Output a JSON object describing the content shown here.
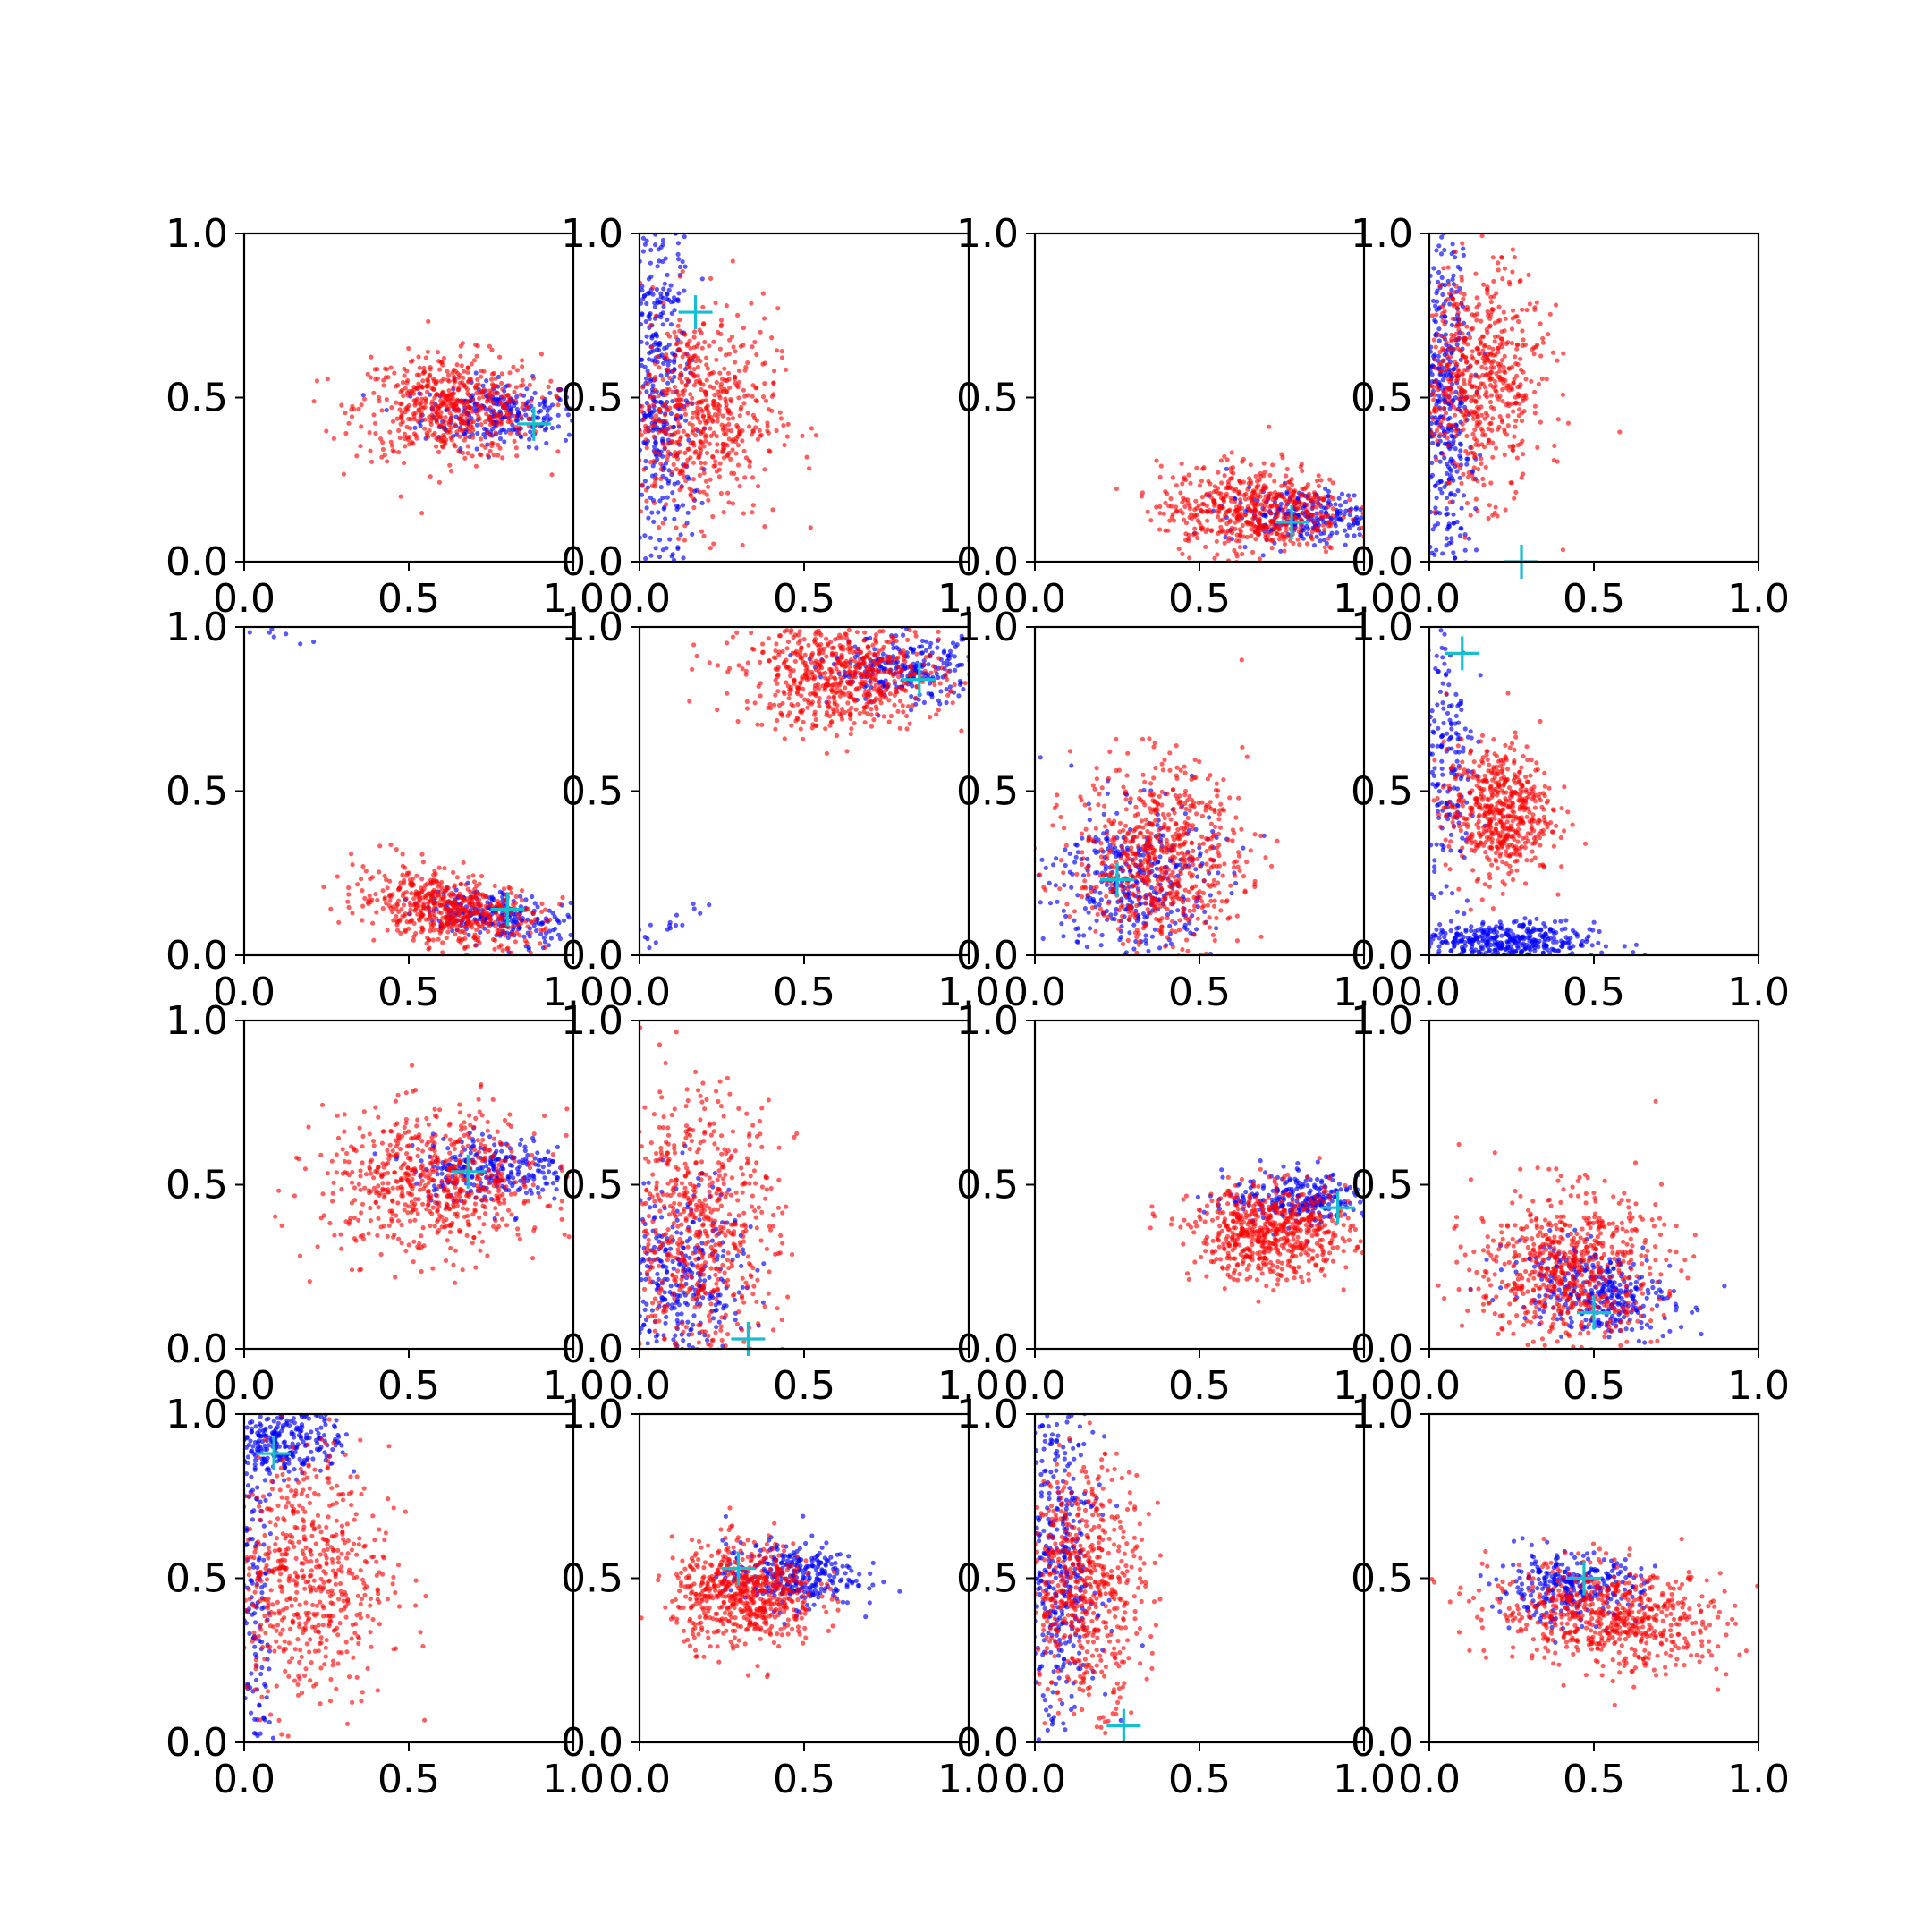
{
  "chart_data": [
    {
      "type": "scatter",
      "xlim": [
        0,
        1
      ],
      "ylim": [
        0,
        1
      ],
      "xticks": [
        "0.0",
        "0.5",
        "1.0"
      ],
      "yticks": [
        "0.0",
        "0.5",
        "1.0"
      ],
      "grid": false,
      "clusters": [
        {
          "series": "blue",
          "n": 260,
          "cx": 0.78,
          "cy": 0.45,
          "sx": 0.12,
          "sy": 0.05,
          "rho": 0.0
        },
        {
          "series": "red",
          "n": 560,
          "cx": 0.62,
          "cy": 0.47,
          "sx": 0.14,
          "sy": 0.08,
          "rho": 0.0
        }
      ],
      "marker": {
        "x": 0.88,
        "y": 0.42
      }
    },
    {
      "type": "scatter",
      "xlim": [
        0,
        1
      ],
      "ylim": [
        0,
        1
      ],
      "xticks": [
        "0.0",
        "0.5",
        "1.0"
      ],
      "yticks": [
        "0.0",
        "0.5",
        "1.0"
      ],
      "grid": false,
      "clusters": [
        {
          "series": "blue",
          "n": 420,
          "cx": 0.06,
          "cy": 0.5,
          "sx": 0.05,
          "sy": 0.3,
          "rho": 0.0
        },
        {
          "series": "red",
          "n": 620,
          "cx": 0.18,
          "cy": 0.45,
          "sx": 0.12,
          "sy": 0.16,
          "rho": 0.0
        }
      ],
      "marker": {
        "x": 0.17,
        "y": 0.76
      }
    },
    {
      "type": "scatter",
      "xlim": [
        0,
        1
      ],
      "ylim": [
        0,
        1
      ],
      "xticks": [
        "0.0",
        "0.5",
        "1.0"
      ],
      "yticks": [
        "0.0",
        "0.5",
        "1.0"
      ],
      "grid": false,
      "clusters": [
        {
          "series": "blue",
          "n": 260,
          "cx": 0.82,
          "cy": 0.14,
          "sx": 0.12,
          "sy": 0.04,
          "rho": 0.0
        },
        {
          "series": "red",
          "n": 560,
          "cx": 0.66,
          "cy": 0.16,
          "sx": 0.14,
          "sy": 0.07,
          "rho": 0.0
        }
      ],
      "marker": {
        "x": 0.78,
        "y": 0.12
      }
    },
    {
      "type": "scatter",
      "xlim": [
        0,
        1
      ],
      "ylim": [
        0,
        1
      ],
      "xticks": [
        "0.0",
        "0.5",
        "1.0"
      ],
      "yticks": [
        "0.0",
        "0.5",
        "1.0"
      ],
      "grid": false,
      "clusters": [
        {
          "series": "blue",
          "n": 420,
          "cx": 0.05,
          "cy": 0.45,
          "sx": 0.04,
          "sy": 0.3,
          "rho": 0.0
        },
        {
          "series": "red",
          "n": 620,
          "cx": 0.15,
          "cy": 0.55,
          "sx": 0.1,
          "sy": 0.17,
          "rho": 0.0
        }
      ],
      "marker": {
        "x": 0.28,
        "y": 0.0
      }
    },
    {
      "type": "scatter",
      "xlim": [
        0,
        1
      ],
      "ylim": [
        0,
        1
      ],
      "xticks": [
        "0.0",
        "0.5",
        "1.0"
      ],
      "yticks": [
        "0.0",
        "0.5",
        "1.0"
      ],
      "grid": false,
      "clusters": [
        {
          "series": "blue",
          "n": 240,
          "cx": 0.78,
          "cy": 0.12,
          "sx": 0.12,
          "sy": 0.04,
          "rho": -0.4
        },
        {
          "series": "red",
          "n": 560,
          "cx": 0.62,
          "cy": 0.14,
          "sx": 0.14,
          "sy": 0.06,
          "rho": -0.4
        },
        {
          "series": "blue",
          "n": 8,
          "cx": 0.08,
          "cy": 0.97,
          "sx": 0.06,
          "sy": 0.015,
          "rho": 0.0
        }
      ],
      "marker": {
        "x": 0.8,
        "y": 0.14
      }
    },
    {
      "type": "scatter",
      "xlim": [
        0,
        1
      ],
      "ylim": [
        0,
        1
      ],
      "xticks": [
        "0.0",
        "0.5",
        "1.0"
      ],
      "yticks": [
        "0.0",
        "0.5",
        "1.0"
      ],
      "grid": false,
      "clusters": [
        {
          "series": "blue",
          "n": 260,
          "cx": 0.82,
          "cy": 0.87,
          "sx": 0.12,
          "sy": 0.05,
          "rho": 0.0
        },
        {
          "series": "red",
          "n": 640,
          "cx": 0.62,
          "cy": 0.85,
          "sx": 0.15,
          "sy": 0.08,
          "rho": 0.0
        },
        {
          "series": "blue",
          "n": 18,
          "cx": 0.08,
          "cy": 0.08,
          "sx": 0.05,
          "sy": 0.06,
          "rho": 0.5
        }
      ],
      "marker": {
        "x": 0.85,
        "y": 0.84
      }
    },
    {
      "type": "scatter",
      "xlim": [
        0,
        1
      ],
      "ylim": [
        0,
        1
      ],
      "xticks": [
        "0.0",
        "0.5",
        "1.0"
      ],
      "yticks": [
        "0.0",
        "0.5",
        "1.0"
      ],
      "grid": false,
      "clusters": [
        {
          "series": "blue",
          "n": 380,
          "cx": 0.3,
          "cy": 0.22,
          "sx": 0.12,
          "sy": 0.12,
          "rho": 0.0
        },
        {
          "series": "red",
          "n": 680,
          "cx": 0.38,
          "cy": 0.3,
          "sx": 0.13,
          "sy": 0.14,
          "rho": 0.0
        }
      ],
      "marker": {
        "x": 0.25,
        "y": 0.23
      }
    },
    {
      "type": "scatter",
      "xlim": [
        0,
        1
      ],
      "ylim": [
        0,
        1
      ],
      "xticks": [
        "0.0",
        "0.5",
        "1.0"
      ],
      "yticks": [
        "0.0",
        "0.5",
        "1.0"
      ],
      "grid": false,
      "clusters": [
        {
          "series": "blue",
          "n": 420,
          "cx": 0.2,
          "cy": 0.04,
          "sx": 0.15,
          "sy": 0.03,
          "rho": 0.0
        },
        {
          "series": "blue",
          "n": 180,
          "cx": 0.06,
          "cy": 0.6,
          "sx": 0.04,
          "sy": 0.25,
          "rho": 0.0
        },
        {
          "series": "red",
          "n": 560,
          "cx": 0.21,
          "cy": 0.44,
          "sx": 0.08,
          "sy": 0.1,
          "rho": 0.0
        }
      ],
      "marker": {
        "x": 0.1,
        "y": 0.92
      }
    },
    {
      "type": "scatter",
      "xlim": [
        0,
        1
      ],
      "ylim": [
        0,
        1
      ],
      "xticks": [
        "0.0",
        "0.5",
        "1.0"
      ],
      "yticks": [
        "0.0",
        "0.5",
        "1.0"
      ],
      "grid": false,
      "clusters": [
        {
          "series": "blue",
          "n": 260,
          "cx": 0.75,
          "cy": 0.55,
          "sx": 0.12,
          "sy": 0.05,
          "rho": 0.0
        },
        {
          "series": "red",
          "n": 640,
          "cx": 0.58,
          "cy": 0.5,
          "sx": 0.17,
          "sy": 0.11,
          "rho": 0.0
        }
      ],
      "marker": {
        "x": 0.68,
        "y": 0.54
      }
    },
    {
      "type": "scatter",
      "xlim": [
        0,
        1
      ],
      "ylim": [
        0,
        1
      ],
      "xticks": [
        "0.0",
        "0.5",
        "1.0"
      ],
      "yticks": [
        "0.0",
        "0.5",
        "1.0"
      ],
      "grid": false,
      "clusters": [
        {
          "series": "blue",
          "n": 360,
          "cx": 0.12,
          "cy": 0.18,
          "sx": 0.1,
          "sy": 0.16,
          "rho": 0.0
        },
        {
          "series": "red",
          "n": 640,
          "cx": 0.18,
          "cy": 0.35,
          "sx": 0.12,
          "sy": 0.22,
          "rho": 0.0
        }
      ],
      "marker": {
        "x": 0.33,
        "y": 0.03
      }
    },
    {
      "type": "scatter",
      "xlim": [
        0,
        1
      ],
      "ylim": [
        0,
        1
      ],
      "xticks": [
        "0.0",
        "0.5",
        "1.0"
      ],
      "yticks": [
        "0.0",
        "0.5",
        "1.0"
      ],
      "grid": false,
      "clusters": [
        {
          "series": "blue",
          "n": 260,
          "cx": 0.82,
          "cy": 0.46,
          "sx": 0.12,
          "sy": 0.04,
          "rho": 0.0
        },
        {
          "series": "red",
          "n": 620,
          "cx": 0.72,
          "cy": 0.35,
          "sx": 0.12,
          "sy": 0.07,
          "rho": 0.0
        }
      ],
      "marker": {
        "x": 0.92,
        "y": 0.43
      }
    },
    {
      "type": "scatter",
      "xlim": [
        0,
        1
      ],
      "ylim": [
        0,
        1
      ],
      "xticks": [
        "0.0",
        "0.5",
        "1.0"
      ],
      "yticks": [
        "0.0",
        "0.5",
        "1.0"
      ],
      "grid": false,
      "clusters": [
        {
          "series": "blue",
          "n": 340,
          "cx": 0.5,
          "cy": 0.18,
          "sx": 0.12,
          "sy": 0.07,
          "rho": -0.3
        },
        {
          "series": "red",
          "n": 660,
          "cx": 0.42,
          "cy": 0.24,
          "sx": 0.14,
          "sy": 0.12,
          "rho": 0.0
        }
      ],
      "marker": {
        "x": 0.5,
        "y": 0.11
      }
    },
    {
      "type": "scatter",
      "xlim": [
        0,
        1
      ],
      "ylim": [
        0,
        1
      ],
      "xticks": [
        "0.0",
        "0.5",
        "1.0"
      ],
      "yticks": [
        "0.0",
        "0.5",
        "1.0"
      ],
      "grid": false,
      "clusters": [
        {
          "series": "blue",
          "n": 300,
          "cx": 0.12,
          "cy": 0.93,
          "sx": 0.09,
          "sy": 0.06,
          "rho": 0.0
        },
        {
          "series": "blue",
          "n": 160,
          "cx": 0.03,
          "cy": 0.4,
          "sx": 0.03,
          "sy": 0.3,
          "rho": 0.0
        },
        {
          "series": "red",
          "n": 620,
          "cx": 0.18,
          "cy": 0.5,
          "sx": 0.13,
          "sy": 0.2,
          "rho": 0.0
        }
      ],
      "marker": {
        "x": 0.09,
        "y": 0.88
      }
    },
    {
      "type": "scatter",
      "xlim": [
        0,
        1
      ],
      "ylim": [
        0,
        1
      ],
      "xticks": [
        "0.0",
        "0.5",
        "1.0"
      ],
      "yticks": [
        "0.0",
        "0.5",
        "1.0"
      ],
      "grid": false,
      "clusters": [
        {
          "series": "blue",
          "n": 300,
          "cx": 0.46,
          "cy": 0.51,
          "sx": 0.1,
          "sy": 0.05,
          "rho": 0.0
        },
        {
          "series": "red",
          "n": 600,
          "cx": 0.32,
          "cy": 0.45,
          "sx": 0.11,
          "sy": 0.08,
          "rho": 0.0
        }
      ],
      "marker": {
        "x": 0.3,
        "y": 0.53
      }
    },
    {
      "type": "scatter",
      "xlim": [
        0,
        1
      ],
      "ylim": [
        0,
        1
      ],
      "xticks": [
        "0.0",
        "0.5",
        "1.0"
      ],
      "yticks": [
        "0.0",
        "0.5",
        "1.0"
      ],
      "grid": false,
      "clusters": [
        {
          "series": "blue",
          "n": 440,
          "cx": 0.07,
          "cy": 0.55,
          "sx": 0.06,
          "sy": 0.28,
          "rho": 0.0
        },
        {
          "series": "red",
          "n": 600,
          "cx": 0.15,
          "cy": 0.48,
          "sx": 0.09,
          "sy": 0.18,
          "rho": 0.0
        }
      ],
      "marker": {
        "x": 0.27,
        "y": 0.05
      }
    },
    {
      "type": "scatter",
      "xlim": [
        0,
        1
      ],
      "ylim": [
        0,
        1
      ],
      "xticks": [
        "0.0",
        "0.5",
        "1.0"
      ],
      "yticks": [
        "0.0",
        "0.5",
        "1.0"
      ],
      "grid": false,
      "clusters": [
        {
          "series": "blue",
          "n": 300,
          "cx": 0.42,
          "cy": 0.47,
          "sx": 0.11,
          "sy": 0.05,
          "rho": 0.0
        },
        {
          "series": "red",
          "n": 640,
          "cx": 0.55,
          "cy": 0.38,
          "sx": 0.18,
          "sy": 0.08,
          "rho": -0.2
        }
      ],
      "marker": {
        "x": 0.47,
        "y": 0.5
      }
    }
  ],
  "colors": {
    "blue": "#0000ff",
    "red": "#ff0000",
    "marker": "#17becf",
    "axes": "#000000"
  }
}
